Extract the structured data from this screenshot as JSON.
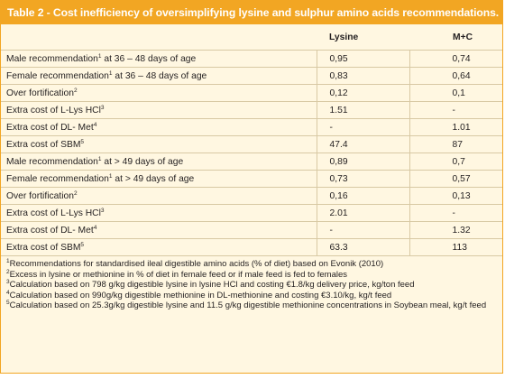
{
  "table": {
    "title": "Table 2 - Cost inefficiency of oversimplifying lysine and sulphur amino acids recommendations.",
    "headers": [
      "",
      "Lysine",
      "M+C"
    ],
    "rows": [
      {
        "label": "Male recommendation",
        "sup": "1",
        "suffix": " at 36 – 48 days of age",
        "lysine": "0,95",
        "mc": "0,74"
      },
      {
        "label": "Female recommendation",
        "sup": "1",
        "suffix": " at 36 – 48 days of age",
        "lysine": "0,83",
        "mc": "0,64"
      },
      {
        "label": "Over fortification",
        "sup": "2",
        "suffix": "",
        "lysine": "0,12",
        "mc": "0,1"
      },
      {
        "label": "Extra cost of L-Lys  HCl",
        "sup": "3",
        "suffix": "",
        "lysine": "1.51",
        "mc": "-"
      },
      {
        "label": "Extra cost of DL- Met",
        "sup": "4",
        "suffix": "",
        "lysine": "-",
        "mc": "1.01"
      },
      {
        "label": "Extra cost of SBM",
        "sup": "5",
        "suffix": "",
        "lysine": "47.4",
        "mc": "87"
      },
      {
        "label": "Male recommendation",
        "sup": "1",
        "suffix": " at > 49 days of age",
        "lysine": "0,89",
        "mc": "0,7"
      },
      {
        "label": "Female recommendation",
        "sup": "1",
        "suffix": " at > 49 days of age",
        "lysine": "0,73",
        "mc": "0,57"
      },
      {
        "label": "Over fortification",
        "sup": "2",
        "suffix": "",
        "lysine": "0,16",
        "mc": "0,13"
      },
      {
        "label": "Extra cost of L-Lys  HCl",
        "sup": "3",
        "suffix": "",
        "lysine": "2.01",
        "mc": "-"
      },
      {
        "label": "Extra cost of DL- Met",
        "sup": "4",
        "suffix": "",
        "lysine": "-",
        "mc": "1.32"
      },
      {
        "label": "Extra cost of SBM",
        "sup": "5",
        "suffix": "",
        "lysine": "63.3",
        "mc": "113"
      }
    ]
  },
  "footnotes": [
    {
      "sup": "1",
      "text": "Recommendations for standardised ileal digestible amino acids (% of diet) based on Evonik (2010)"
    },
    {
      "sup": "2",
      "text": "Excess in lysine or methionine in % of diet in female feed or if male feed is fed to females"
    },
    {
      "sup": "3",
      "text": "Calculation based on 798 g/kg digestible lysine in lysine HCl and costing €1.8/kg delivery price, kg/ton feed"
    },
    {
      "sup": "4",
      "text": "Calculation based on 990g/kg digestible methionine in DL-methionine and costing €3.10/kg, kg/t feed"
    },
    {
      "sup": "5",
      "text": "Calculation based on 25.3g/kg digestible lysine and 11.5 g/kg digestible methionine concentrations in Soybean meal, kg/t feed"
    }
  ],
  "colors": {
    "header_band": "#f2a623",
    "table_background": "#fff7e1",
    "rule": "#d8c9a4"
  }
}
